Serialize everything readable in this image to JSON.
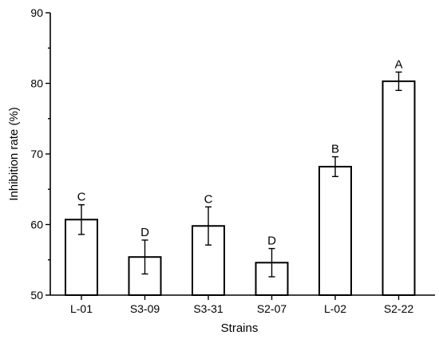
{
  "chart_data": {
    "type": "bar",
    "categories": [
      "L-01",
      "S3-09",
      "S3-31",
      "S2-07",
      "L-02",
      "S2-22"
    ],
    "values": [
      60.7,
      55.4,
      59.8,
      54.6,
      68.2,
      80.3
    ],
    "errors": [
      2.1,
      2.4,
      2.7,
      2.0,
      1.4,
      1.3
    ],
    "significance_labels": [
      "C",
      "D",
      "C",
      "D",
      "B",
      "A"
    ],
    "xlabel": "Strains",
    "ylabel": "Inhibition rate (%)",
    "ylim": [
      50,
      90
    ],
    "yticks": [
      50,
      60,
      70,
      80,
      90
    ],
    "grid": false,
    "bar_fill": "#ffffff",
    "bar_stroke": "#000000"
  }
}
